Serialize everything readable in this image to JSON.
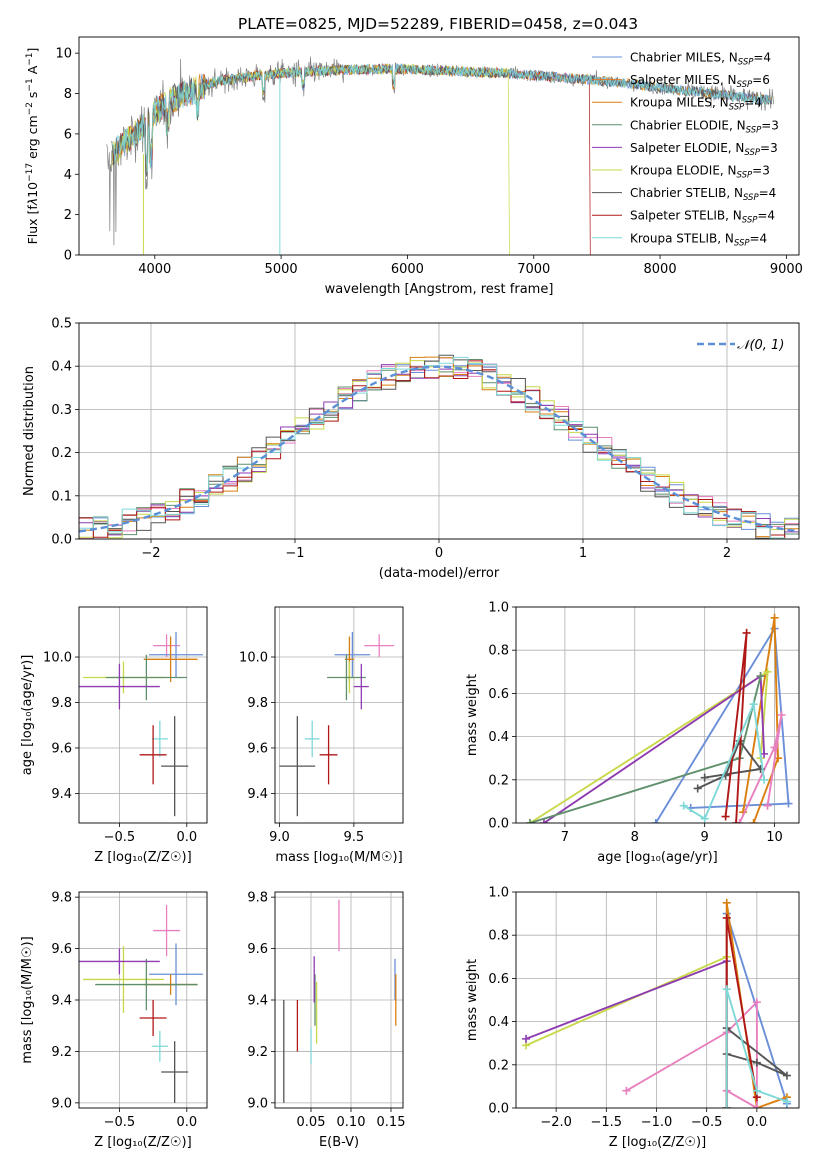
{
  "figure_title": "PLATE=0825, MJD=52289, FIBERID=0458, z=0.043",
  "colors": {
    "chabrier_miles": "#6a8fd8",
    "salpeter_miles": "#e8742a",
    "kroupa_miles": "#d97f0f",
    "chabrier_elodie": "#5f8f6b",
    "salpeter_elodie": "#8e3bb0",
    "kroupa_elodie": "#c9d84a",
    "chabrier_stelib": "#555555",
    "salpeter_stelib": "#b01818",
    "kroupa_stelib": "#7fd8d8",
    "salpeter_miles_pink": "#e87fbf",
    "grid": "#b0b0b0",
    "gaussian": "#5b8fd8"
  },
  "chart_data": [
    {
      "id": "spectrum",
      "type": "line",
      "xlabel": "wavelength [Angstrom, rest frame]",
      "ylabel_parts": [
        "Flux [f",
        "λ",
        "10",
        "−17",
        " erg cm",
        "−2",
        " s",
        "−1",
        " A",
        "−1",
        "]"
      ],
      "xlim": [
        3400,
        9100
      ],
      "ylim": [
        0,
        10.8
      ],
      "xticks": [
        4000,
        5000,
        6000,
        7000,
        8000,
        9000
      ],
      "yticks": [
        0,
        2,
        4,
        6,
        8,
        10
      ],
      "grid": false,
      "legend_position": "top-right",
      "legend": [
        {
          "label": "Chabrier MILES, N",
          "sub": "SSP",
          "tail": "=4",
          "color": "#6a8fd8"
        },
        {
          "label": "Salpeter MILES, N",
          "sub": "SSP",
          "tail": "=6",
          "color": "#e8742a"
        },
        {
          "label": "Kroupa MILES, N",
          "sub": "SSP",
          "tail": "=4",
          "color": "#d97f0f"
        },
        {
          "label": "Chabrier ELODIE, N",
          "sub": "SSP",
          "tail": "=3",
          "color": "#5f8f6b"
        },
        {
          "label": "Salpeter ELODIE, N",
          "sub": "SSP",
          "tail": "=3",
          "color": "#8e3bb0"
        },
        {
          "label": "Kroupa ELODIE, N",
          "sub": "SSP",
          "tail": "=3",
          "color": "#c9d84a"
        },
        {
          "label": "Chabrier STELIB, N",
          "sub": "SSP",
          "tail": "=4",
          "color": "#555555"
        },
        {
          "label": "Salpeter STELIB, N",
          "sub": "SSP",
          "tail": "=4",
          "color": "#b01818"
        },
        {
          "label": "Kroupa STELIB, N",
          "sub": "SSP",
          "tail": "=4",
          "color": "#7fd8d8"
        }
      ],
      "continuum": {
        "x": [
          3600,
          3700,
          3800,
          3900,
          4000,
          4100,
          4200,
          4300,
          4400,
          4500,
          4700,
          5000,
          5300,
          5600,
          6000,
          6400,
          6800,
          7200,
          7600,
          8000,
          8400,
          8800
        ],
        "y": [
          4.6,
          5.2,
          5.8,
          6.3,
          7.0,
          7.6,
          7.9,
          8.1,
          8.4,
          8.6,
          8.8,
          9.0,
          9.1,
          9.2,
          9.2,
          9.1,
          9.0,
          8.8,
          8.6,
          8.3,
          8.0,
          7.7
        ]
      }
    },
    {
      "id": "residuals",
      "type": "bar",
      "xlabel": "(data-model)/error",
      "ylabel": "Normed distribution",
      "xlim": [
        -2.5,
        2.5
      ],
      "ylim": [
        0,
        0.5
      ],
      "xticks": [
        -2,
        -1,
        0,
        1,
        2
      ],
      "yticks": [
        0.0,
        0.1,
        0.2,
        0.3,
        0.4,
        0.5
      ],
      "grid": true,
      "legend_position": "top-right",
      "legend_label": "𝒩(0, 1)",
      "bin_width": 0.1
    },
    {
      "id": "age_vs_Z",
      "type": "scatter",
      "xlabel": "Z [log₁₀(Z/Z☉)]",
      "ylabel": "age  [log₁₀(age/yr)]",
      "xlim": [
        -0.8,
        0.15
      ],
      "ylim": [
        9.27,
        10.22
      ],
      "xticks": [
        -0.5,
        0.0
      ],
      "yticks": [
        9.4,
        9.6,
        9.8,
        10.0
      ],
      "grid": true,
      "points": [
        {
          "x": -0.15,
          "y": 10.05,
          "xe": 0.1,
          "ye": 0.05,
          "color": "#e87fbf"
        },
        {
          "x": -0.08,
          "y": 10.01,
          "xe": 0.2,
          "ye": 0.1,
          "color": "#6a8fd8"
        },
        {
          "x": -0.12,
          "y": 9.99,
          "xe": 0.2,
          "ye": 0.1,
          "color": "#d97f0f"
        },
        {
          "x": -0.47,
          "y": 9.91,
          "xe": 0.3,
          "ye": 0.07,
          "color": "#c9d84a"
        },
        {
          "x": -0.3,
          "y": 9.91,
          "xe": 0.3,
          "ye": 0.1,
          "color": "#5f8f6b"
        },
        {
          "x": -0.5,
          "y": 9.87,
          "xe": 0.3,
          "ye": 0.1,
          "color": "#8e3bb0"
        },
        {
          "x": -0.2,
          "y": 9.64,
          "xe": 0.06,
          "ye": 0.08,
          "color": "#7fd8d8"
        },
        {
          "x": -0.25,
          "y": 9.57,
          "xe": 0.1,
          "ye": 0.13,
          "color": "#b01818"
        },
        {
          "x": -0.09,
          "y": 9.52,
          "xe": 0.1,
          "ye": 0.22,
          "color": "#555555"
        }
      ]
    },
    {
      "id": "age_vs_mass",
      "type": "scatter",
      "xlabel": "mass [log₁₀(M/M☉)]",
      "ylabel": "",
      "xlim": [
        8.97,
        9.83
      ],
      "ylim": [
        9.27,
        10.22
      ],
      "xticks": [
        9.0,
        9.5
      ],
      "yticks": [
        9.4,
        9.6,
        9.8,
        10.0
      ],
      "grid": true,
      "points": [
        {
          "x": 9.67,
          "y": 10.05,
          "xe": 0.1,
          "ye": 0.05,
          "color": "#e87fbf"
        },
        {
          "x": 9.49,
          "y": 10.01,
          "xe": 0.12,
          "ye": 0.1,
          "color": "#6a8fd8"
        },
        {
          "x": 9.47,
          "y": 9.99,
          "xe": 0.03,
          "ye": 0.1,
          "color": "#d97f0f"
        },
        {
          "x": 9.47,
          "y": 9.91,
          "xe": 0.04,
          "ye": 0.07,
          "color": "#c9d84a"
        },
        {
          "x": 9.45,
          "y": 9.91,
          "xe": 0.13,
          "ye": 0.1,
          "color": "#5f8f6b"
        },
        {
          "x": 9.55,
          "y": 9.87,
          "xe": 0.05,
          "ye": 0.1,
          "color": "#8e3bb0"
        },
        {
          "x": 9.22,
          "y": 9.64,
          "xe": 0.05,
          "ye": 0.08,
          "color": "#7fd8d8"
        },
        {
          "x": 9.33,
          "y": 9.57,
          "xe": 0.06,
          "ye": 0.13,
          "color": "#b01818"
        },
        {
          "x": 9.12,
          "y": 9.52,
          "xe": 0.12,
          "ye": 0.22,
          "color": "#555555"
        }
      ]
    },
    {
      "id": "mass_weight_vs_age",
      "type": "line",
      "xlabel": "age  [log₁₀(age/yr)]",
      "ylabel": "mass weight",
      "xlim": [
        6.3,
        10.35
      ],
      "ylim": [
        0,
        1.0
      ],
      "xticks": [
        7,
        8,
        9,
        10
      ],
      "yticks": [
        0.0,
        0.2,
        0.4,
        0.6,
        0.8,
        1.0
      ],
      "grid": true,
      "series": [
        {
          "color": "#6a8fd8",
          "x": [
            8.3,
            10.0,
            10.2,
            8.8
          ],
          "y": [
            0.0,
            0.9,
            0.09,
            0.07
          ]
        },
        {
          "color": "#d97f0f",
          "x": [
            9.55,
            10.0,
            10.05,
            9.7
          ],
          "y": [
            0.05,
            0.95,
            0.3,
            0.0
          ]
        },
        {
          "color": "#e87fbf",
          "x": [
            9.9,
            10.1,
            10.0,
            9.5
          ],
          "y": [
            0.08,
            0.5,
            0.35,
            0.0
          ]
        },
        {
          "color": "#c9d84a",
          "x": [
            6.5,
            9.9,
            9.8
          ],
          "y": [
            0.0,
            0.7,
            0.3
          ]
        },
        {
          "color": "#8e3bb0",
          "x": [
            6.7,
            9.8,
            9.85
          ],
          "y": [
            0.0,
            0.68,
            0.32
          ]
        },
        {
          "color": "#5f8f6b",
          "x": [
            6.5,
            9.5,
            9.8
          ],
          "y": [
            0.0,
            0.3,
            0.68
          ]
        },
        {
          "color": "#555555",
          "x": [
            8.9,
            9.3,
            9.5,
            9.8,
            9.0
          ],
          "y": [
            0.16,
            0.22,
            0.38,
            0.25,
            0.21
          ]
        },
        {
          "color": "#b01818",
          "x": [
            9.45,
            9.6,
            9.3
          ],
          "y": [
            0.0,
            0.88,
            0.03
          ]
        },
        {
          "color": "#7fd8d8",
          "x": [
            8.7,
            9.0,
            9.7,
            9.85
          ],
          "y": [
            0.08,
            0.02,
            0.55,
            0.2
          ]
        }
      ]
    },
    {
      "id": "mass_vs_Z",
      "type": "scatter",
      "xlabel": "Z [log₁₀(Z/Z☉)]",
      "ylabel": "mass [log₁₀(M/M☉)]",
      "xlim": [
        -0.8,
        0.15
      ],
      "ylim": [
        8.98,
        9.82
      ],
      "xticks": [
        -0.5,
        0.0
      ],
      "yticks": [
        9.0,
        9.2,
        9.4,
        9.6,
        9.8
      ],
      "grid": true,
      "points": [
        {
          "x": -0.15,
          "y": 9.67,
          "xe": 0.1,
          "ye": 0.1,
          "color": "#e87fbf"
        },
        {
          "x": -0.08,
          "y": 9.5,
          "xe": 0.2,
          "ye": 0.12,
          "color": "#6a8fd8"
        },
        {
          "x": -0.12,
          "y": 9.46,
          "xe": 0.2,
          "ye": 0.04,
          "color": "#d97f0f"
        },
        {
          "x": -0.47,
          "y": 9.48,
          "xe": 0.3,
          "ye": 0.13,
          "color": "#c9d84a"
        },
        {
          "x": -0.3,
          "y": 9.46,
          "xe": 0.38,
          "ye": 0.1,
          "color": "#5f8f6b"
        },
        {
          "x": -0.5,
          "y": 9.55,
          "xe": 0.3,
          "ye": 0.05,
          "color": "#8e3bb0"
        },
        {
          "x": -0.2,
          "y": 9.22,
          "xe": 0.06,
          "ye": 0.06,
          "color": "#7fd8d8"
        },
        {
          "x": -0.25,
          "y": 9.33,
          "xe": 0.1,
          "ye": 0.07,
          "color": "#b01818"
        },
        {
          "x": -0.09,
          "y": 9.12,
          "xe": 0.1,
          "ye": 0.12,
          "color": "#555555"
        }
      ]
    },
    {
      "id": "mass_vs_ebv",
      "type": "scatter",
      "xlabel": "E(B-V)",
      "ylabel": "",
      "xlim": [
        0.005,
        0.165
      ],
      "ylim": [
        8.98,
        9.82
      ],
      "xticks": [
        0.05,
        0.1,
        0.15
      ],
      "yticks": [
        9.0,
        9.2,
        9.4,
        9.6,
        9.8
      ],
      "grid": true,
      "points": [
        {
          "x": 0.085,
          "y": 9.69,
          "xe": 0.0,
          "ye": 0.1,
          "color": "#e87fbf"
        },
        {
          "x": 0.155,
          "y": 9.48,
          "xe": 0.0,
          "ye": 0.08,
          "color": "#6a8fd8"
        },
        {
          "x": 0.156,
          "y": 9.4,
          "xe": 0.0,
          "ye": 0.1,
          "color": "#d97f0f"
        },
        {
          "x": 0.057,
          "y": 9.35,
          "xe": 0.0,
          "ye": 0.12,
          "color": "#c9d84a"
        },
        {
          "x": 0.055,
          "y": 9.4,
          "xe": 0.0,
          "ye": 0.1,
          "color": "#5f8f6b"
        },
        {
          "x": 0.054,
          "y": 9.48,
          "xe": 0.0,
          "ye": 0.09,
          "color": "#8e3bb0"
        },
        {
          "x": 0.05,
          "y": 9.22,
          "xe": 0.0,
          "ye": 0.07,
          "color": "#7fd8d8"
        },
        {
          "x": 0.033,
          "y": 9.3,
          "xe": 0.0,
          "ye": 0.1,
          "color": "#b01818"
        },
        {
          "x": 0.016,
          "y": 9.2,
          "xe": 0.0,
          "ye": 0.2,
          "color": "#555555"
        }
      ]
    },
    {
      "id": "mass_weight_vs_Z",
      "type": "line",
      "xlabel": "Z [log₁₀(Z/Z☉)]",
      "ylabel": "mass weight",
      "xlim": [
        -2.4,
        0.42
      ],
      "ylim": [
        0,
        1.0
      ],
      "xticks": [
        -2.0,
        -1.5,
        -1.0,
        -0.5,
        0.0
      ],
      "yticks": [
        0.0,
        0.2,
        0.4,
        0.6,
        0.8,
        1.0
      ],
      "grid": true,
      "series": [
        {
          "color": "#6a8fd8",
          "x": [
            -0.3,
            -0.3,
            0.3
          ],
          "y": [
            0.0,
            0.9,
            0.02
          ]
        },
        {
          "color": "#d97f0f",
          "x": [
            -0.3,
            -0.3,
            0.0,
            0.3
          ],
          "y": [
            0.0,
            0.95,
            0.0,
            0.05
          ]
        },
        {
          "color": "#c9d84a",
          "x": [
            -2.3,
            -0.3,
            -0.3
          ],
          "y": [
            0.29,
            0.7,
            0.0
          ]
        },
        {
          "color": "#8e3bb0",
          "x": [
            -2.3,
            -0.3,
            -0.3
          ],
          "y": [
            0.32,
            0.68,
            0.0
          ]
        },
        {
          "color": "#e87fbf",
          "x": [
            -1.3,
            -0.3,
            0.0,
            0.0,
            -0.3
          ],
          "y": [
            0.08,
            0.35,
            0.49,
            0.0,
            0.08
          ]
        },
        {
          "color": "#555555",
          "x": [
            -0.3,
            0.0,
            0.3,
            -0.3
          ],
          "y": [
            0.25,
            0.21,
            0.15,
            0.37
          ]
        },
        {
          "color": "#b01818",
          "x": [
            -0.3,
            -0.3,
            0.0
          ],
          "y": [
            0.0,
            0.88,
            0.05
          ]
        },
        {
          "color": "#7fd8d8",
          "x": [
            -0.3,
            -0.3,
            0.0,
            0.3
          ],
          "y": [
            0.0,
            0.55,
            0.08,
            0.03
          ]
        }
      ]
    }
  ]
}
